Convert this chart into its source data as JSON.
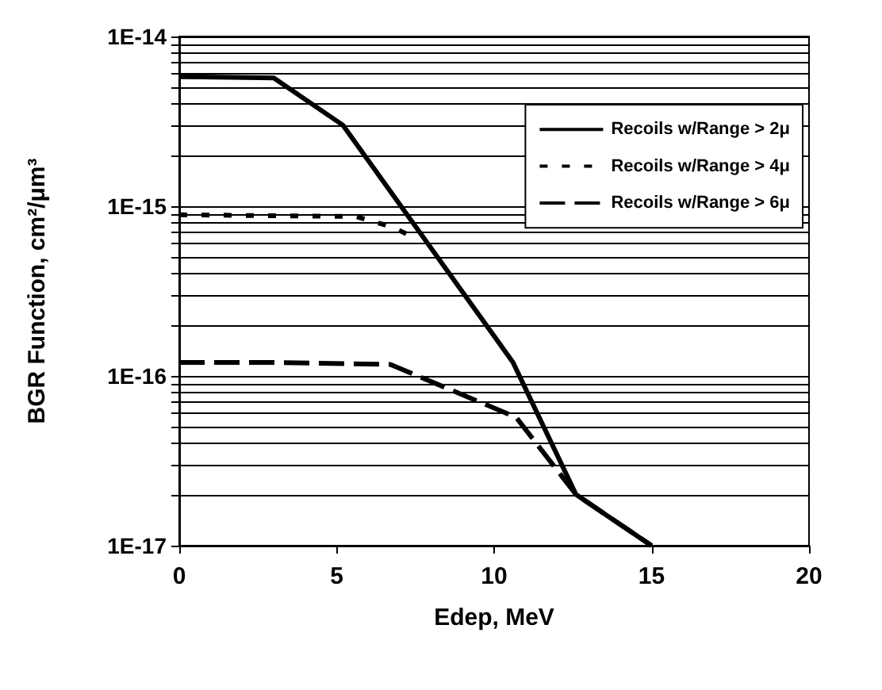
{
  "chart_data": {
    "type": "line",
    "xlabel": "Edep, MeV",
    "ylabel": "BGR Function, cm²/μm³",
    "log": "y",
    "grid": "y",
    "legend": "top right",
    "marker": "none",
    "xlim": [
      0,
      20
    ],
    "xticks": [
      0,
      5,
      10,
      15,
      20
    ],
    "ylim": [
      1e-17,
      1e-14
    ],
    "yticks": [
      {
        "value": 1e-17,
        "label": "1E-17"
      },
      {
        "value": 2e-17,
        "label": null
      },
      {
        "value": 3e-17,
        "label": null
      },
      {
        "value": 4e-17,
        "label": null
      },
      {
        "value": 5e-17,
        "label": null
      },
      {
        "value": 6e-17,
        "label": null
      },
      {
        "value": 7e-17,
        "label": null
      },
      {
        "value": 8e-17,
        "label": null
      },
      {
        "value": 9e-17,
        "label": null
      },
      {
        "value": 1e-16,
        "label": "1E-16"
      },
      {
        "value": 2e-16,
        "label": null
      },
      {
        "value": 3e-16,
        "label": null
      },
      {
        "value": 4e-16,
        "label": null
      },
      {
        "value": 5e-16,
        "label": null
      },
      {
        "value": 6e-16,
        "label": null
      },
      {
        "value": 7e-16,
        "label": null
      },
      {
        "value": 8e-16,
        "label": null
      },
      {
        "value": 9e-16,
        "label": null
      },
      {
        "value": 1e-15,
        "label": "1E-15"
      },
      {
        "value": 2e-15,
        "label": null
      },
      {
        "value": 3e-15,
        "label": null
      },
      {
        "value": 4e-15,
        "label": null
      },
      {
        "value": 5e-15,
        "label": null
      },
      {
        "value": 6e-15,
        "label": null
      },
      {
        "value": 7e-15,
        "label": null
      },
      {
        "value": 8e-15,
        "label": null
      },
      {
        "value": 9e-15,
        "label": null
      },
      {
        "value": 1e-14,
        "label": "1E-14"
      }
    ],
    "series": [
      {
        "name": "Recoils w/Range > 2μ",
        "color": "#000000",
        "line_style": "solid",
        "x": [
          0,
          3,
          5.2,
          10.6,
          12.6,
          15
        ],
        "values": [
          5.8e-15,
          5.7e-15,
          3e-15,
          1.2e-16,
          2e-17,
          1e-17
        ]
      },
      {
        "name": "Recoils w/Range > 4μ",
        "color": "#000000",
        "line_style": "dotted",
        "x": [
          0,
          5.6,
          6.8,
          7.4
        ],
        "values": [
          8.9e-16,
          8.7e-16,
          7.5e-16,
          6.6e-16
        ]
      },
      {
        "name": "Recoils w/Range > 6μ",
        "color": "#000000",
        "line_style": "dashed",
        "x": [
          0,
          3,
          6.7,
          10.7,
          12.6,
          15
        ],
        "values": [
          1.2e-16,
          1.2e-16,
          1.17e-16,
          5.7e-17,
          2e-17,
          1e-17
        ]
      }
    ]
  }
}
